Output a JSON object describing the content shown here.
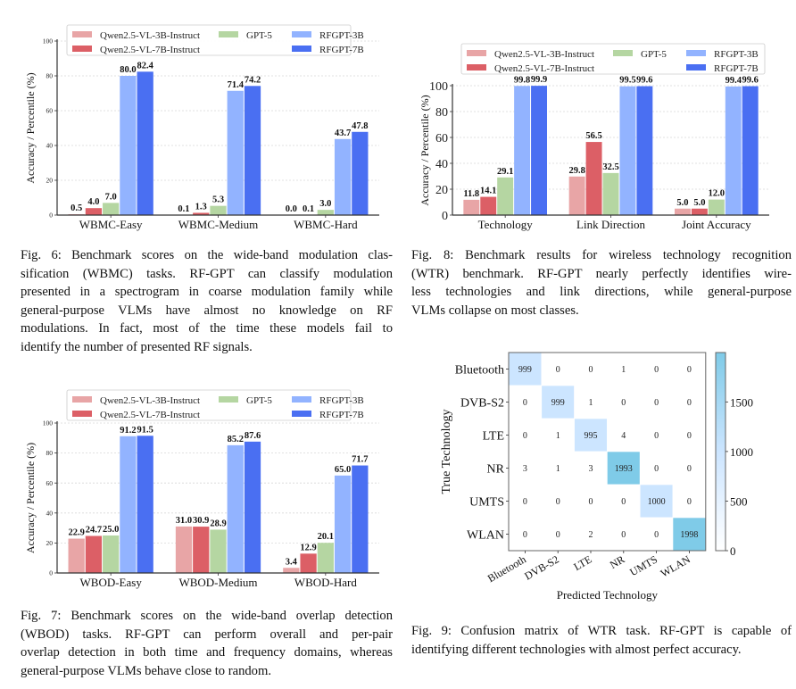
{
  "page": {
    "figures": [
      {
        "id": "fig6",
        "caption_lines": [
          "Fig. 6: Benchmark scores on the wide-band modulation clas-",
          "sification (WBMC) tasks. RF-GPT can classify modulation",
          "presented in a spectrogram in coarse modulation family while",
          "general-purpose VLMs have almost no knowledge on RF",
          "modulations. In fact, most of the time these models fail to",
          "identify the number of presented RF signals."
        ]
      },
      {
        "id": "fig8",
        "caption_lines": [
          "Fig. 8: Benchmark results for wireless technology recognition",
          "(WTR) benchmark. RF-GPT nearly perfectly identifies wire-",
          "less technologies and link directions, while general-purpose",
          "VLMs collapse on most classes."
        ]
      },
      {
        "id": "fig7",
        "caption_lines": [
          "Fig. 7: Benchmark scores on the wide-band overlap detection",
          "(WBOD) tasks. RF-GPT can perform overall and per-pair",
          "overlap detection in both time and frequency domains, whereas",
          "general-purpose VLMs behave close to random."
        ]
      },
      {
        "id": "fig9",
        "caption_lines": [
          "Fig. 9: Confusion matrix of WTR task. RF-GPT is capable of",
          "identifying different technologies with almost perfect accuracy."
        ]
      }
    ]
  },
  "colors": {
    "qwen3b": "#e8a5a6",
    "qwen7b": "#dc5f66",
    "gpt5": "#b5d6a2",
    "rfgpt3b": "#92b3ff",
    "rfgpt7b": "#4a6ff2",
    "cm_low": "#ffffff",
    "cm_high": "#7fcbe8"
  },
  "chart_data": [
    {
      "id": "fig6",
      "type": "bar",
      "title": "",
      "xlabel": "",
      "ylabel": "Accuracy / Percentile (%)",
      "ylim": [
        0,
        100
      ],
      "yticks": [
        "0",
        "20",
        "40",
        "60",
        "80",
        "100"
      ],
      "grid": true,
      "legend_position": "top-center",
      "categories": [
        "WBMC-Easy",
        "WBMC-Medium",
        "WBMC-Hard"
      ],
      "series": [
        {
          "name": "Qwen2.5-VL-3B-Instruct",
          "color_key": "qwen3b",
          "values": [
            0.5,
            0.1,
            0.0
          ],
          "labels": [
            "0.5",
            "0.1",
            "0.0"
          ]
        },
        {
          "name": "Qwen2.5-VL-7B-Instruct",
          "color_key": "qwen7b",
          "values": [
            4.0,
            1.3,
            0.1
          ],
          "labels": [
            "4.0",
            "1.3",
            "0.1"
          ]
        },
        {
          "name": "GPT-5",
          "color_key": "gpt5",
          "values": [
            7.0,
            5.3,
            3.0
          ],
          "labels": [
            "7.0",
            "5.3",
            "3.0"
          ]
        },
        {
          "name": "RFGPT-3B",
          "color_key": "rfgpt3b",
          "values": [
            80.0,
            71.4,
            43.7
          ],
          "labels": [
            "80.0",
            "71.4",
            "43.7"
          ]
        },
        {
          "name": "RFGPT-7B",
          "color_key": "rfgpt7b",
          "values": [
            82.4,
            74.2,
            47.8
          ],
          "labels": [
            "82.4",
            "74.2",
            "47.8"
          ]
        }
      ]
    },
    {
      "id": "fig8",
      "type": "bar",
      "title": "",
      "xlabel": "",
      "ylabel": "Accuracy / Percentile (%)",
      "ylim": [
        0,
        100
      ],
      "yticks": [
        "0",
        "20",
        "40",
        "60",
        "80",
        "100"
      ],
      "grid": true,
      "legend_position": "top-center (above axes)",
      "categories": [
        "Technology",
        "Link Direction",
        "Joint Accuracy"
      ],
      "series": [
        {
          "name": "Qwen2.5-VL-3B-Instruct",
          "color_key": "qwen3b",
          "values": [
            11.8,
            29.8,
            5.0
          ],
          "labels": [
            "11.8",
            "29.8",
            "5.0"
          ]
        },
        {
          "name": "Qwen2.5-VL-7B-Instruct",
          "color_key": "qwen7b",
          "values": [
            14.1,
            56.5,
            5.0
          ],
          "labels": [
            "14.1",
            "56.5",
            "5.0"
          ]
        },
        {
          "name": "GPT-5",
          "color_key": "gpt5",
          "values": [
            29.1,
            32.5,
            12.0
          ],
          "labels": [
            "29.1",
            "32.5",
            "12.0"
          ]
        },
        {
          "name": "RFGPT-3B",
          "color_key": "rfgpt3b",
          "values": [
            99.8,
            99.5,
            99.4
          ],
          "labels": [
            "99.8",
            "99.5",
            "99.4"
          ]
        },
        {
          "name": "RFGPT-7B",
          "color_key": "rfgpt7b",
          "values": [
            99.9,
            99.6,
            99.6
          ],
          "labels": [
            "99.9",
            "99.6",
            "99.6"
          ]
        }
      ]
    },
    {
      "id": "fig7",
      "type": "bar",
      "title": "",
      "xlabel": "",
      "ylabel": "Accuracy / Percentile (%)",
      "ylim": [
        0,
        100
      ],
      "yticks": [
        "0",
        "20",
        "40",
        "60",
        "80",
        "100"
      ],
      "grid": true,
      "legend_position": "top-center",
      "categories": [
        "WBOD-Easy",
        "WBOD-Medium",
        "WBOD-Hard"
      ],
      "series": [
        {
          "name": "Qwen2.5-VL-3B-Instruct",
          "color_key": "qwen3b",
          "values": [
            22.9,
            31.0,
            3.4
          ],
          "labels": [
            "22.9",
            "31.0",
            "3.4"
          ]
        },
        {
          "name": "Qwen2.5-VL-7B-Instruct",
          "color_key": "qwen7b",
          "values": [
            24.7,
            30.9,
            12.9
          ],
          "labels": [
            "24.7",
            "30.9",
            "12.9"
          ]
        },
        {
          "name": "GPT-5",
          "color_key": "gpt5",
          "values": [
            25.0,
            28.9,
            20.1
          ],
          "labels": [
            "25.0",
            "28.9",
            "20.1"
          ]
        },
        {
          "name": "RFGPT-3B",
          "color_key": "rfgpt3b",
          "values": [
            91.2,
            85.2,
            65.0
          ],
          "labels": [
            "91.2",
            "85.2",
            "65.0"
          ]
        },
        {
          "name": "RFGPT-7B",
          "color_key": "rfgpt7b",
          "values": [
            91.5,
            87.6,
            71.7
          ],
          "labels": [
            "91.5",
            "87.6",
            "71.7"
          ]
        }
      ]
    },
    {
      "id": "fig9",
      "type": "heatmap",
      "title": "",
      "xlabel": "Predicted Technology",
      "ylabel": "True Technology",
      "x_categories": [
        "Bluetooth",
        "DVB-S2",
        "LTE",
        "NR",
        "UMTS",
        "WLAN"
      ],
      "y_categories": [
        "Bluetooth",
        "DVB-S2",
        "LTE",
        "NR",
        "UMTS",
        "WLAN"
      ],
      "matrix": [
        [
          999,
          0,
          0,
          1,
          0,
          0
        ],
        [
          0,
          999,
          1,
          0,
          0,
          0
        ],
        [
          0,
          1,
          995,
          4,
          0,
          0
        ],
        [
          3,
          1,
          3,
          1993,
          0,
          0
        ],
        [
          0,
          0,
          0,
          0,
          1000,
          0
        ],
        [
          0,
          0,
          2,
          0,
          0,
          1998
        ]
      ],
      "colorbar": {
        "range": [
          0,
          1998
        ],
        "ticks": [
          0,
          500,
          1000,
          1500
        ],
        "tick_labels": [
          "0",
          "500",
          "1000",
          "1500"
        ]
      }
    }
  ]
}
